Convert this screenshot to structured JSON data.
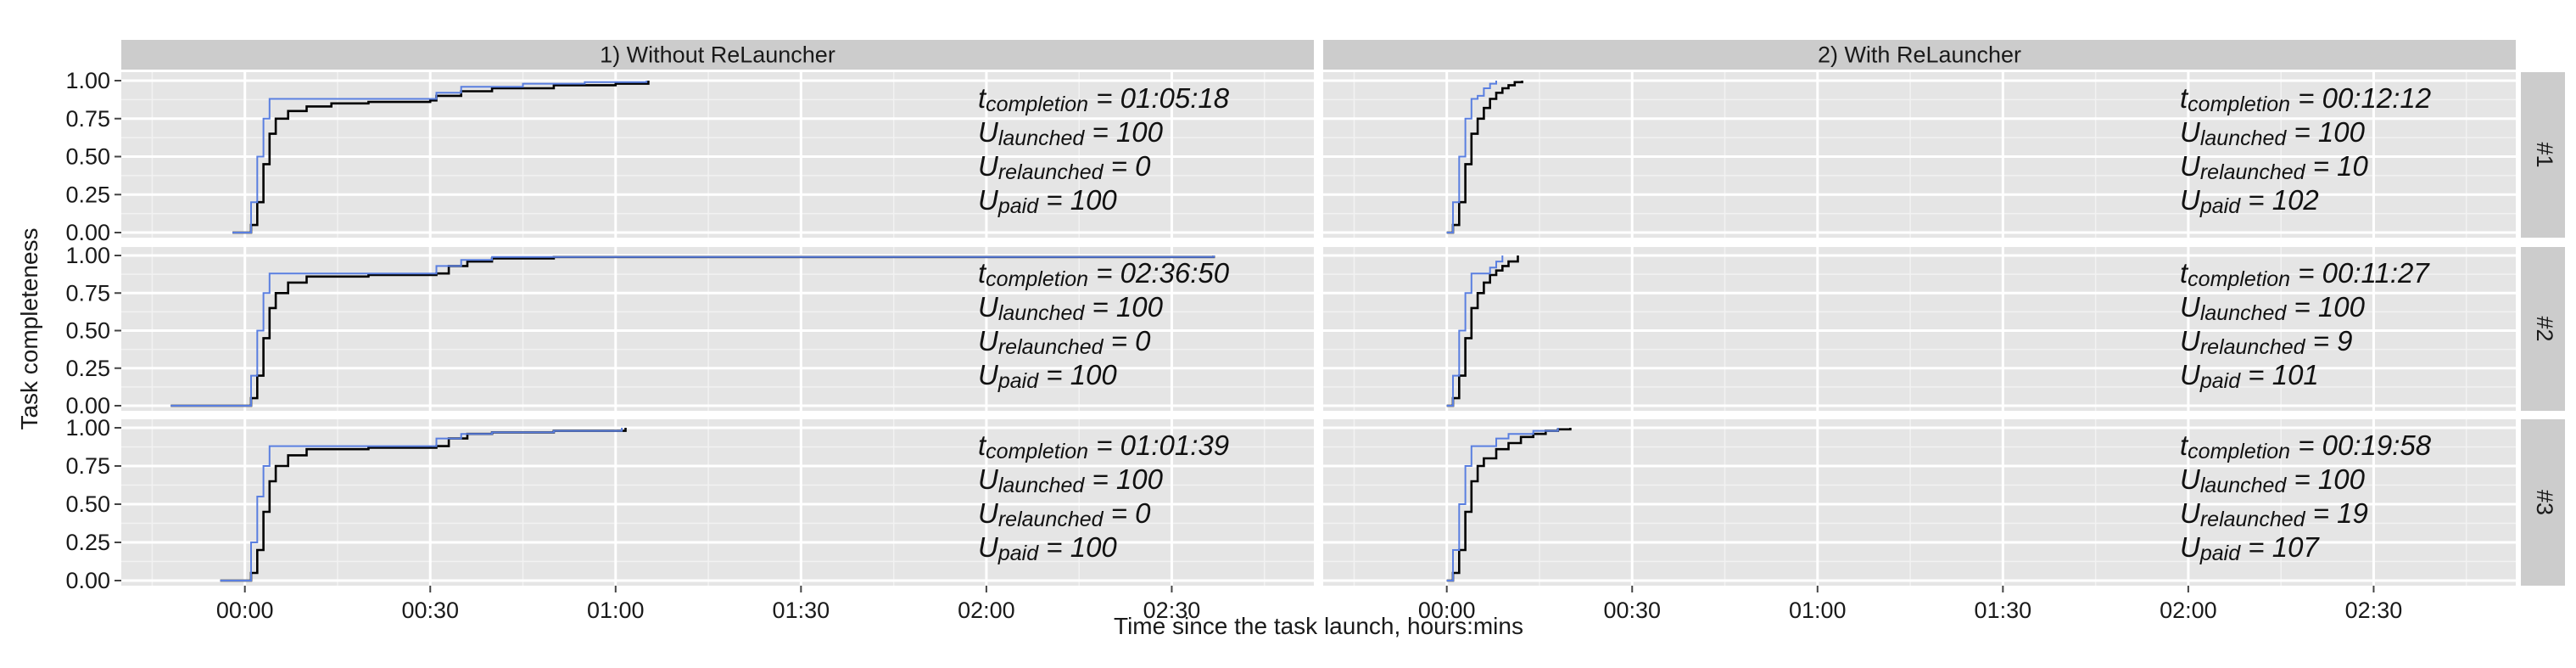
{
  "chart_data": {
    "type": "line",
    "xlabel": "Time since the task launch, hours:mins",
    "ylabel": "Task completeness",
    "x_unit": "minutes",
    "xlim": [
      -20,
      173
    ],
    "ylim": [
      0,
      1
    ],
    "x_ticks": [
      {
        "value": 0,
        "label": "00:00"
      },
      {
        "value": 30,
        "label": "00:30"
      },
      {
        "value": 60,
        "label": "01:00"
      },
      {
        "value": 90,
        "label": "01:30"
      },
      {
        "value": 120,
        "label": "02:00"
      },
      {
        "value": 150,
        "label": "02:30"
      }
    ],
    "y_ticks": [
      {
        "value": 0,
        "label": "0.00"
      },
      {
        "value": 0.25,
        "label": "0.25"
      },
      {
        "value": 0.5,
        "label": "0.50"
      },
      {
        "value": 0.75,
        "label": "0.75"
      },
      {
        "value": 1,
        "label": "1.00"
      }
    ],
    "grid": true,
    "legend": "none",
    "colors": {
      "completed": "#000000",
      "launched": "#5a7fe0",
      "panel_bg": "#e5e5e5",
      "strip_bg": "#cccccc",
      "grid": "#ffffff"
    },
    "columns": [
      "1) Without ReLauncher",
      "2) With ReLauncher"
    ],
    "rows": [
      "#1",
      "#2",
      "#3"
    ],
    "panels": [
      {
        "column": 0,
        "row": 0,
        "annotation": [
          {
            "base": "t",
            "sub": "completion",
            "rest": " = 01:05:18"
          },
          {
            "base": "U",
            "sub": "launched",
            "rest": " = 100"
          },
          {
            "base": "U",
            "sub": "relaunched",
            "rest": " = 0"
          },
          {
            "base": "U",
            "sub": "paid",
            "rest": " = 100"
          }
        ],
        "series": [
          {
            "key": "completed",
            "points": [
              [
                -2,
                0
              ],
              [
                0,
                0
              ],
              [
                1,
                0.05
              ],
              [
                2,
                0.2
              ],
              [
                3,
                0.45
              ],
              [
                4,
                0.65
              ],
              [
                5,
                0.75
              ],
              [
                7,
                0.8
              ],
              [
                10,
                0.83
              ],
              [
                14,
                0.85
              ],
              [
                20,
                0.86
              ],
              [
                30,
                0.87
              ],
              [
                31,
                0.9
              ],
              [
                35,
                0.93
              ],
              [
                40,
                0.95
              ],
              [
                50,
                0.97
              ],
              [
                60,
                0.98
              ],
              [
                65.3,
                1
              ]
            ]
          },
          {
            "key": "launched",
            "points": [
              [
                -2,
                0
              ],
              [
                0,
                0
              ],
              [
                1,
                0.2
              ],
              [
                2,
                0.5
              ],
              [
                3,
                0.75
              ],
              [
                4,
                0.88
              ],
              [
                10,
                0.88
              ],
              [
                30,
                0.88
              ],
              [
                31,
                0.92
              ],
              [
                35,
                0.96
              ],
              [
                45,
                0.98
              ],
              [
                55,
                0.99
              ],
              [
                65,
                1
              ]
            ]
          }
        ]
      },
      {
        "column": 0,
        "row": 1,
        "annotation": [
          {
            "base": "t",
            "sub": "completion",
            "rest": " = 02:36:50"
          },
          {
            "base": "U",
            "sub": "launched",
            "rest": " = 100"
          },
          {
            "base": "U",
            "sub": "relaunched",
            "rest": " = 0"
          },
          {
            "base": "U",
            "sub": "paid",
            "rest": " = 100"
          }
        ],
        "series": [
          {
            "key": "completed",
            "points": [
              [
                -12,
                0
              ],
              [
                0,
                0
              ],
              [
                1,
                0.05
              ],
              [
                2,
                0.2
              ],
              [
                3,
                0.45
              ],
              [
                4,
                0.65
              ],
              [
                5,
                0.75
              ],
              [
                7,
                0.82
              ],
              [
                10,
                0.86
              ],
              [
                20,
                0.87
              ],
              [
                31,
                0.88
              ],
              [
                33,
                0.93
              ],
              [
                36,
                0.96
              ],
              [
                40,
                0.98
              ],
              [
                50,
                0.99
              ],
              [
                156.8,
                1
              ]
            ]
          },
          {
            "key": "launched",
            "points": [
              [
                -12,
                0
              ],
              [
                0,
                0
              ],
              [
                1,
                0.2
              ],
              [
                2,
                0.5
              ],
              [
                3,
                0.75
              ],
              [
                4,
                0.88
              ],
              [
                30,
                0.88
              ],
              [
                31,
                0.93
              ],
              [
                35,
                0.97
              ],
              [
                40,
                0.99
              ],
              [
                156.8,
                1
              ]
            ]
          }
        ]
      },
      {
        "column": 0,
        "row": 2,
        "annotation": [
          {
            "base": "t",
            "sub": "completion",
            "rest": " = 01:01:39"
          },
          {
            "base": "U",
            "sub": "launched",
            "rest": " = 100"
          },
          {
            "base": "U",
            "sub": "relaunched",
            "rest": " = 0"
          },
          {
            "base": "U",
            "sub": "paid",
            "rest": " = 100"
          }
        ],
        "series": [
          {
            "key": "completed",
            "points": [
              [
                -4,
                0
              ],
              [
                0,
                0
              ],
              [
                1,
                0.05
              ],
              [
                2,
                0.2
              ],
              [
                3,
                0.45
              ],
              [
                4,
                0.65
              ],
              [
                5,
                0.75
              ],
              [
                7,
                0.82
              ],
              [
                10,
                0.86
              ],
              [
                20,
                0.87
              ],
              [
                31,
                0.88
              ],
              [
                33,
                0.93
              ],
              [
                36,
                0.96
              ],
              [
                40,
                0.97
              ],
              [
                50,
                0.98
              ],
              [
                61.6,
                1
              ]
            ]
          },
          {
            "key": "launched",
            "points": [
              [
                -4,
                0
              ],
              [
                0,
                0
              ],
              [
                1,
                0.25
              ],
              [
                2,
                0.55
              ],
              [
                3,
                0.75
              ],
              [
                4,
                0.88
              ],
              [
                30,
                0.88
              ],
              [
                31,
                0.93
              ],
              [
                35,
                0.96
              ],
              [
                40,
                0.97
              ],
              [
                50,
                0.98
              ],
              [
                61,
                1
              ]
            ]
          }
        ]
      },
      {
        "column": 1,
        "row": 0,
        "annotation": [
          {
            "base": "t",
            "sub": "completion",
            "rest": " = 00:12:12"
          },
          {
            "base": "U",
            "sub": "launched",
            "rest": " = 100"
          },
          {
            "base": "U",
            "sub": "relaunched",
            "rest": " = 10"
          },
          {
            "base": "U",
            "sub": "paid",
            "rest": " = 102"
          }
        ],
        "series": [
          {
            "key": "completed",
            "points": [
              [
                0,
                0
              ],
              [
                1,
                0.05
              ],
              [
                2,
                0.2
              ],
              [
                3,
                0.45
              ],
              [
                4,
                0.65
              ],
              [
                5,
                0.75
              ],
              [
                6,
                0.82
              ],
              [
                7,
                0.88
              ],
              [
                8,
                0.92
              ],
              [
                9,
                0.95
              ],
              [
                10,
                0.97
              ],
              [
                11,
                0.99
              ],
              [
                12.2,
                1
              ]
            ]
          },
          {
            "key": "launched",
            "points": [
              [
                0,
                0
              ],
              [
                1,
                0.2
              ],
              [
                2,
                0.5
              ],
              [
                3,
                0.75
              ],
              [
                4,
                0.88
              ],
              [
                5,
                0.9
              ],
              [
                6,
                0.95
              ],
              [
                7,
                0.98
              ],
              [
                8,
                1
              ]
            ]
          }
        ]
      },
      {
        "column": 1,
        "row": 1,
        "annotation": [
          {
            "base": "t",
            "sub": "completion",
            "rest": " = 00:11:27"
          },
          {
            "base": "U",
            "sub": "launched",
            "rest": " = 100"
          },
          {
            "base": "U",
            "sub": "relaunched",
            "rest": " = 9"
          },
          {
            "base": "U",
            "sub": "paid",
            "rest": " = 101"
          }
        ],
        "series": [
          {
            "key": "completed",
            "points": [
              [
                0,
                0
              ],
              [
                1,
                0.05
              ],
              [
                2,
                0.2
              ],
              [
                3,
                0.45
              ],
              [
                4,
                0.65
              ],
              [
                5,
                0.75
              ],
              [
                6,
                0.82
              ],
              [
                7,
                0.87
              ],
              [
                8,
                0.9
              ],
              [
                9,
                0.93
              ],
              [
                10,
                0.96
              ],
              [
                11.5,
                1
              ]
            ]
          },
          {
            "key": "launched",
            "points": [
              [
                0,
                0
              ],
              [
                1,
                0.2
              ],
              [
                2,
                0.5
              ],
              [
                3,
                0.75
              ],
              [
                4,
                0.88
              ],
              [
                6,
                0.88
              ],
              [
                7,
                0.92
              ],
              [
                8,
                0.96
              ],
              [
                9,
                1
              ]
            ]
          }
        ]
      },
      {
        "column": 1,
        "row": 2,
        "annotation": [
          {
            "base": "t",
            "sub": "completion",
            "rest": " = 00:19:58"
          },
          {
            "base": "U",
            "sub": "launched",
            "rest": " = 100"
          },
          {
            "base": "U",
            "sub": "relaunched",
            "rest": " = 19"
          },
          {
            "base": "U",
            "sub": "paid",
            "rest": " = 107"
          }
        ],
        "series": [
          {
            "key": "completed",
            "points": [
              [
                0,
                0
              ],
              [
                1,
                0.05
              ],
              [
                2,
                0.2
              ],
              [
                3,
                0.45
              ],
              [
                4,
                0.65
              ],
              [
                5,
                0.75
              ],
              [
                6,
                0.8
              ],
              [
                8,
                0.86
              ],
              [
                10,
                0.9
              ],
              [
                12,
                0.94
              ],
              [
                14,
                0.96
              ],
              [
                16,
                0.98
              ],
              [
                18,
                0.99
              ],
              [
                20,
                1
              ]
            ]
          },
          {
            "key": "launched",
            "points": [
              [
                0,
                0
              ],
              [
                1,
                0.2
              ],
              [
                2,
                0.5
              ],
              [
                3,
                0.75
              ],
              [
                4,
                0.88
              ],
              [
                7,
                0.88
              ],
              [
                8,
                0.93
              ],
              [
                10,
                0.96
              ],
              [
                14,
                0.98
              ],
              [
                18,
                1
              ]
            ]
          }
        ]
      }
    ]
  }
}
